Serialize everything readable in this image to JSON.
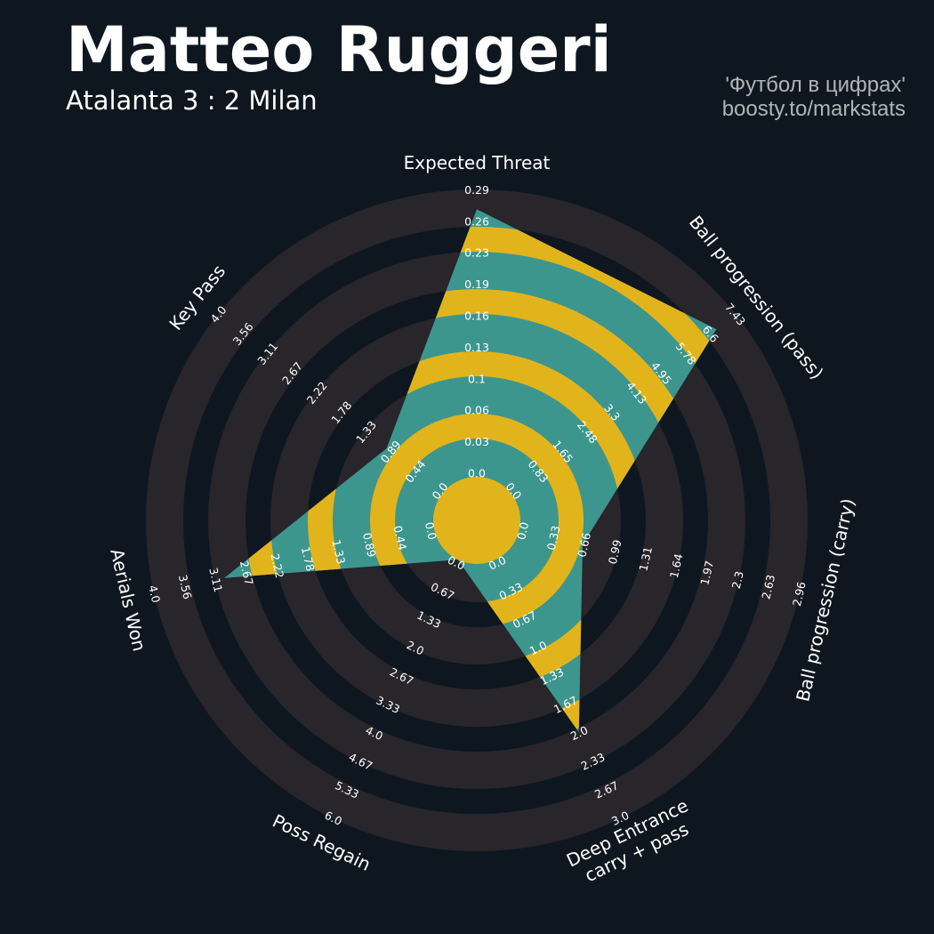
{
  "header": {
    "title": "Matteo Ruggeri",
    "subtitle": "Atalanta 3 : 2 Milan",
    "credit_line1": "'Футбол в цифрах'",
    "credit_line2": "boosty.to/markstats"
  },
  "colors": {
    "background": "#0e1720",
    "rings": "#28252b",
    "radar": "#3d968e",
    "radar_rings": "#e2b41b",
    "text": "#ffffff"
  },
  "chart_data": {
    "type": "radar",
    "axes": [
      {
        "label": [
          "Expected Threat"
        ],
        "range": [
          0,
          0.29
        ],
        "value": 0.27,
        "ticks": [
          "0.0",
          "0.03",
          "0.06",
          "0.1",
          "0.13",
          "0.16",
          "0.19",
          "0.23",
          "0.26",
          "0.29"
        ]
      },
      {
        "label": [
          "Ball progression (pass)"
        ],
        "range": [
          0,
          7.43
        ],
        "value": 6.8,
        "ticks": [
          "0.0",
          "0.83",
          "1.65",
          "2.48",
          "3.3",
          "4.13",
          "4.95",
          "5.78",
          "6.6",
          "7.43"
        ]
      },
      {
        "label": [
          "Ball progression (carry)"
        ],
        "range": [
          0,
          2.96
        ],
        "value": 0.67,
        "ticks": [
          "0.0",
          "0.33",
          "0.66",
          "0.99",
          "1.31",
          "1.64",
          "1.97",
          "2.3",
          "2.63",
          "2.96"
        ]
      },
      {
        "label": [
          "Deep Entrance",
          "carry + pass"
        ],
        "range": [
          0,
          3.0
        ],
        "value": 2.0,
        "ticks": [
          "0.0",
          "0.33",
          "0.67",
          "1.0",
          "1.33",
          "1.67",
          "2.0",
          "2.33",
          "2.67",
          "3.0"
        ]
      },
      {
        "label": [
          "Poss Regain"
        ],
        "range": [
          0,
          6.0
        ],
        "value": 0.0,
        "ticks": [
          "0.0",
          "0.67",
          "1.33",
          "2.0",
          "2.67",
          "3.33",
          "4.0",
          "4.67",
          "5.33",
          "6.0"
        ]
      },
      {
        "label": [
          "Aerials Won"
        ],
        "range": [
          0,
          4.0
        ],
        "value": 3.0,
        "ticks": [
          "0.0",
          "0.44",
          "0.89",
          "1.33",
          "1.78",
          "2.22",
          "2.67",
          "3.11",
          "3.56",
          "4.0"
        ]
      },
      {
        "label": [
          "Key Pass"
        ],
        "range": [
          0,
          4.0
        ],
        "value": 1.0,
        "ticks": [
          "0.0",
          "0.44",
          "0.89",
          "1.33",
          "1.78",
          "2.22",
          "2.67",
          "3.11",
          "3.56",
          "4.0"
        ]
      }
    ]
  }
}
